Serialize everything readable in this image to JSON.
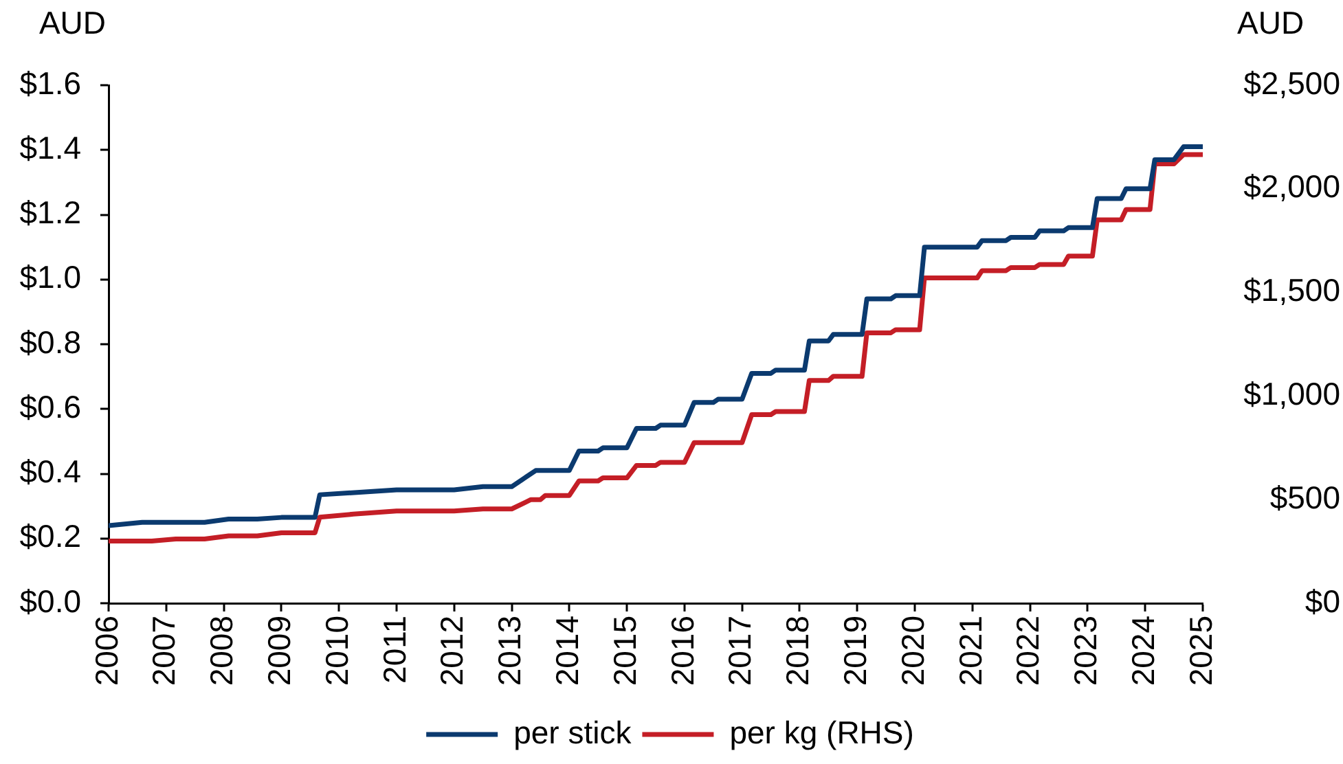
{
  "chart_data": {
    "type": "line",
    "xlim": [
      "2006",
      "2025"
    ],
    "xticks": [
      "2006",
      "2007",
      "2008",
      "2009",
      "2010",
      "2011",
      "2012",
      "2013",
      "2014",
      "2015",
      "2016",
      "2017",
      "2018",
      "2019",
      "2020",
      "2021",
      "2022",
      "2023",
      "2024",
      "2025"
    ],
    "ylabel": "AUD",
    "y2label": "AUD",
    "ylim": [
      0,
      1.6
    ],
    "yticks": [
      {
        "value": 0,
        "label": "$0.0"
      },
      {
        "value": 0.2,
        "label": "$0.2"
      },
      {
        "value": 0.4,
        "label": "$0.4"
      },
      {
        "value": 0.6,
        "label": "$0.6"
      },
      {
        "value": 0.8,
        "label": "$0.8"
      },
      {
        "value": 1.0,
        "label": "$1.0"
      },
      {
        "value": 1.2,
        "label": "$1.2"
      },
      {
        "value": 1.4,
        "label": "$1.4"
      },
      {
        "value": 1.6,
        "label": "$1.6"
      }
    ],
    "y2lim": [
      0,
      2500
    ],
    "y2ticks": [
      {
        "value": 0,
        "label": "$0"
      },
      {
        "value": 500,
        "label": "$500"
      },
      {
        "value": 1000,
        "label": "$1,000"
      },
      {
        "value": 1500,
        "label": "$1,500"
      },
      {
        "value": 2000,
        "label": "$2,000"
      },
      {
        "value": 2500,
        "label": "$2,500"
      }
    ],
    "series": [
      {
        "name": "per stick",
        "color": "#0b3a6f",
        "x": [
          "2006-01",
          "2006-08",
          "2007-09",
          "2008-02",
          "2008-08",
          "2009-01",
          "2009-08",
          "2009-09",
          "2011-01",
          "2012-01",
          "2012-07",
          "2013-01",
          "2013-06",
          "2014-01",
          "2014-03",
          "2014-07",
          "2014-08",
          "2015-01",
          "2015-03",
          "2015-07",
          "2015-08",
          "2016-01",
          "2016-03",
          "2016-07",
          "2016-08",
          "2017-01",
          "2017-03",
          "2017-07",
          "2017-08",
          "2018-02",
          "2018-03",
          "2018-07",
          "2018-08",
          "2019-02",
          "2019-03",
          "2019-08",
          "2019-09",
          "2020-02",
          "2020-03",
          "2021-02",
          "2021-03",
          "2021-08",
          "2021-09",
          "2022-02",
          "2022-03",
          "2022-08",
          "2022-09",
          "2023-02",
          "2023-03",
          "2023-08",
          "2023-09",
          "2024-02",
          "2024-03",
          "2024-07",
          "2024-09",
          "2025-01"
        ],
        "values": [
          0.24,
          0.25,
          0.25,
          0.26,
          0.26,
          0.265,
          0.265,
          0.335,
          0.35,
          0.35,
          0.36,
          0.36,
          0.41,
          0.41,
          0.47,
          0.47,
          0.48,
          0.48,
          0.54,
          0.54,
          0.55,
          0.55,
          0.62,
          0.62,
          0.63,
          0.63,
          0.71,
          0.71,
          0.72,
          0.72,
          0.81,
          0.81,
          0.83,
          0.83,
          0.94,
          0.94,
          0.95,
          0.95,
          1.1,
          1.1,
          1.12,
          1.12,
          1.13,
          1.13,
          1.15,
          1.15,
          1.16,
          1.16,
          1.25,
          1.25,
          1.28,
          1.28,
          1.37,
          1.37,
          1.41,
          1.41
        ]
      },
      {
        "name": "per kg (RHS)",
        "color": "#c41e26",
        "axis": "y2",
        "x": [
          "2006-01",
          "2006-10",
          "2007-03",
          "2007-09",
          "2008-02",
          "2008-08",
          "2009-01",
          "2009-08",
          "2009-09",
          "2010-04",
          "2011-01",
          "2012-01",
          "2012-07",
          "2013-01",
          "2013-05",
          "2013-07",
          "2013-08",
          "2014-01",
          "2014-03",
          "2014-07",
          "2014-08",
          "2015-01",
          "2015-03",
          "2015-07",
          "2015-08",
          "2016-01",
          "2016-03",
          "2017-01",
          "2017-03",
          "2017-07",
          "2017-08",
          "2018-02",
          "2018-03",
          "2018-07",
          "2018-08",
          "2019-02",
          "2019-03",
          "2019-08",
          "2019-09",
          "2020-02",
          "2020-03",
          "2021-02",
          "2021-03",
          "2021-08",
          "2021-09",
          "2022-02",
          "2022-03",
          "2022-08",
          "2022-09",
          "2023-02",
          "2023-03",
          "2023-08",
          "2023-09",
          "2024-02",
          "2024-03",
          "2024-07",
          "2024-09",
          "2025-01"
        ],
        "values": [
          300,
          300,
          310,
          310,
          325,
          325,
          340,
          340,
          415,
          430,
          445,
          445,
          455,
          455,
          500,
          500,
          520,
          520,
          590,
          590,
          605,
          605,
          665,
          665,
          680,
          680,
          775,
          775,
          910,
          910,
          925,
          925,
          1075,
          1075,
          1095,
          1095,
          1305,
          1305,
          1320,
          1320,
          1570,
          1570,
          1605,
          1605,
          1620,
          1620,
          1635,
          1635,
          1675,
          1675,
          1850,
          1850,
          1900,
          1900,
          2120,
          2120,
          2165,
          2165
        ]
      }
    ],
    "grid": false,
    "legend": "bottom",
    "marker": "none"
  }
}
